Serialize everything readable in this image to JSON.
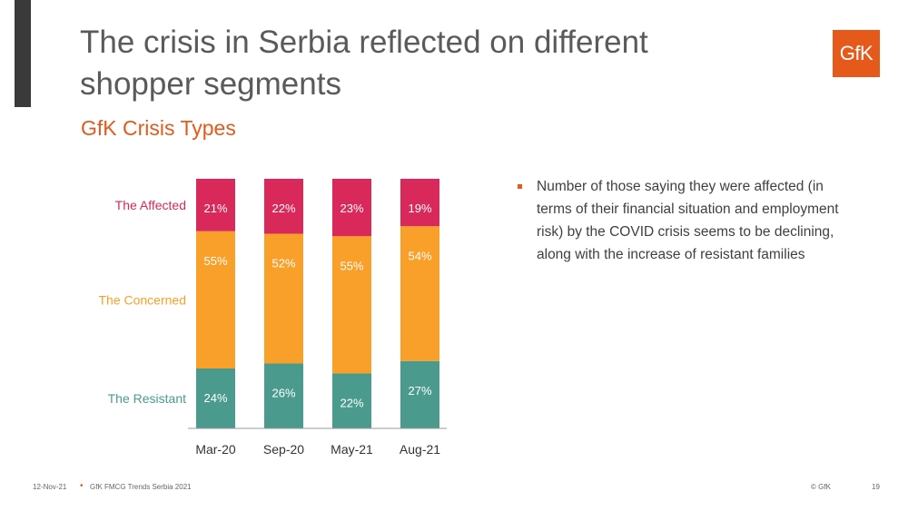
{
  "slide": {
    "title_line1": "The crisis in Serbia reflected on different",
    "title_line2": "shopper segments",
    "subtitle": "GfK Crisis Types",
    "logo_text": "GfK",
    "bullet": "Number of those saying they were affected (in terms of their financial situation and employment risk) by the COVID crisis seems to be declining, along with the increase of resistant families",
    "footer": {
      "date": "12-Nov-21",
      "separator": "•",
      "source": "GfK FMCG Trends Serbia 2021",
      "copyright": "© GfK",
      "page": "19"
    }
  },
  "colors": {
    "accent": "#e5591b",
    "affected": "#d9285a",
    "concerned": "#f9a02b",
    "resistant": "#4a9b8e"
  },
  "chart_data": {
    "type": "bar",
    "stacked": true,
    "categories": [
      "Mar-20",
      "Sep-20",
      "May-21",
      "Aug-21"
    ],
    "series": [
      {
        "name": "The Resistant",
        "values": [
          24,
          26,
          22,
          27
        ],
        "color": "#4a9b8e"
      },
      {
        "name": "The Concerned",
        "values": [
          55,
          52,
          55,
          54
        ],
        "color": "#f9a02b"
      },
      {
        "name": "The Affected",
        "values": [
          21,
          22,
          23,
          19
        ],
        "color": "#d9285a"
      }
    ],
    "value_suffix": "%",
    "ylim": [
      0,
      100
    ],
    "grid": false,
    "legend": "left"
  }
}
